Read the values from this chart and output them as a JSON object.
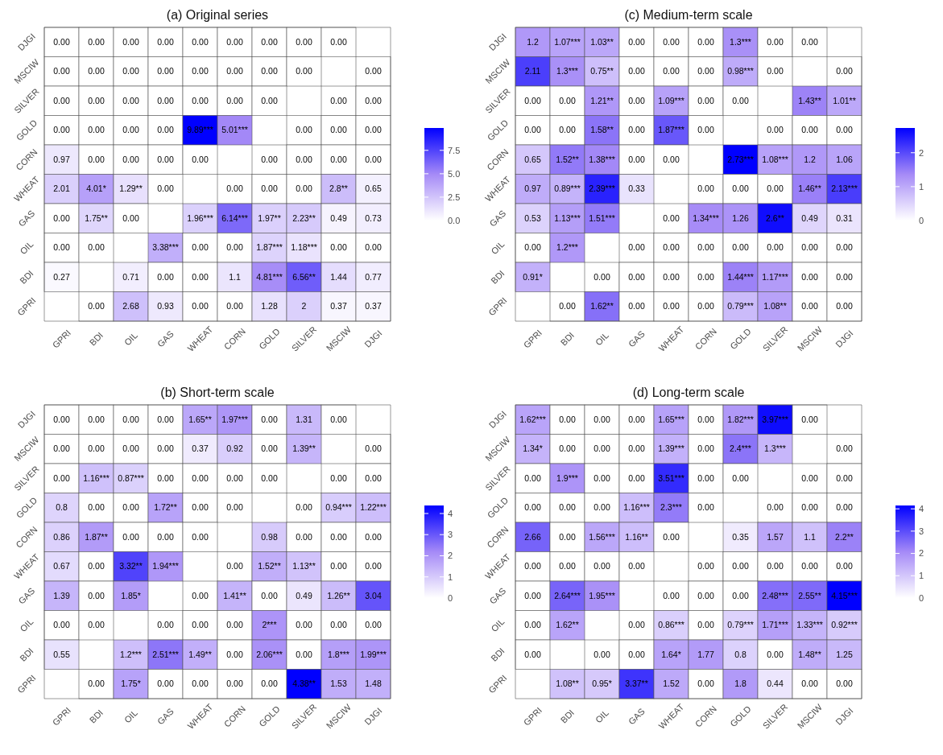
{
  "chart_data": [
    {
      "type": "heatmap",
      "title": "(a) Original series",
      "categories": [
        "GPRI",
        "BDI",
        "OIL",
        "GAS",
        "WHEAT",
        "CORN",
        "GOLD",
        "SILVER",
        "MSCIW",
        "DJGI"
      ],
      "y_categories": [
        "DJGI",
        "MSCIW",
        "SILVER",
        "GOLD",
        "CORN",
        "WHEAT",
        "GAS",
        "OIL",
        "BDI",
        "GPRI"
      ],
      "cells": [
        [
          0,
          0,
          0,
          0,
          0,
          0,
          0,
          0,
          0,
          null
        ],
        [
          0,
          0,
          0,
          0,
          0,
          0,
          0,
          0,
          null,
          0
        ],
        [
          0,
          0,
          0,
          0,
          0,
          0,
          0,
          null,
          0,
          0
        ],
        [
          0,
          0,
          0,
          0,
          9.89,
          5.01,
          null,
          0,
          0,
          0
        ],
        [
          0.97,
          0,
          0,
          0,
          0,
          null,
          0,
          0,
          0,
          0
        ],
        [
          2.01,
          4.01,
          1.29,
          0,
          null,
          0,
          0,
          0,
          2.8,
          0.65
        ],
        [
          0,
          1.75,
          0,
          null,
          1.96,
          6.14,
          1.97,
          2.23,
          0.49,
          0.73
        ],
        [
          0,
          0,
          null,
          3.38,
          0,
          0,
          1.87,
          1.18,
          0,
          0
        ],
        [
          0.27,
          null,
          0.71,
          0,
          0,
          1.1,
          4.81,
          6.56,
          1.44,
          0.77
        ],
        [
          null,
          0,
          2.68,
          0.93,
          0,
          0,
          1.28,
          2,
          0.37,
          0.37
        ]
      ],
      "cell_labels": [
        [
          "0.00",
          "0.00",
          "0.00",
          "0.00",
          "0.00",
          "0.00",
          "0.00",
          "0.00",
          "0.00",
          null
        ],
        [
          "0.00",
          "0.00",
          "0.00",
          "0.00",
          "0.00",
          "0.00",
          "0.00",
          "0.00",
          null,
          "0.00"
        ],
        [
          "0.00",
          "0.00",
          "0.00",
          "0.00",
          "0.00",
          "0.00",
          "0.00",
          null,
          "0.00",
          "0.00"
        ],
        [
          "0.00",
          "0.00",
          "0.00",
          "0.00",
          "9.89***",
          "5.01***",
          null,
          "0.00",
          "0.00",
          "0.00"
        ],
        [
          "0.97",
          "0.00",
          "0.00",
          "0.00",
          "0.00",
          null,
          "0.00",
          "0.00",
          "0.00",
          "0.00"
        ],
        [
          "2.01",
          "4.01*",
          "1.29**",
          "0.00",
          null,
          "0.00",
          "0.00",
          "0.00",
          "2.8**",
          "0.65"
        ],
        [
          "0.00",
          "1.75**",
          "0.00",
          null,
          "1.96***",
          "6.14***",
          "1.97**",
          "2.23**",
          "0.49",
          "0.73"
        ],
        [
          "0.00",
          "0.00",
          null,
          "3.38***",
          "0.00",
          "0.00",
          "1.87***",
          "1.18***",
          "0.00",
          "0.00"
        ],
        [
          "0.27",
          null,
          "0.71",
          "0.00",
          "0.00",
          "1.1",
          "4.81***",
          "6.56**",
          "1.44",
          "0.77"
        ],
        [
          null,
          "0.00",
          "2.68",
          "0.93",
          "0.00",
          "0.00",
          "1.28",
          "2",
          "0.37",
          "0.37"
        ]
      ],
      "colors": [
        "#ffffff",
        "#a58af7",
        "#0000ff"
      ],
      "clim": [
        0,
        9.89
      ],
      "cticks": [
        {
          "value": 0,
          "label": "0.0"
        },
        {
          "value": 2.5,
          "label": "2.5"
        },
        {
          "value": 5,
          "label": "5.0"
        },
        {
          "value": 7.5,
          "label": "7.5"
        }
      ]
    },
    {
      "type": "heatmap",
      "title": "(c) Medium-term scale",
      "categories": [
        "GPRI",
        "BDI",
        "OIL",
        "GAS",
        "WHEAT",
        "CORN",
        "GOLD",
        "SILVER",
        "MSCIW",
        "DJGI"
      ],
      "y_categories": [
        "DJGI",
        "MSCIW",
        "SILVER",
        "GOLD",
        "CORN",
        "WHEAT",
        "GAS",
        "OIL",
        "BDI",
        "GPRI"
      ],
      "cells": [
        [
          1.2,
          1.07,
          1.03,
          0,
          0,
          0,
          1.3,
          0,
          0,
          null
        ],
        [
          2.11,
          1.3,
          0.75,
          0,
          0,
          0,
          0.98,
          0,
          null,
          0
        ],
        [
          0,
          0,
          1.21,
          0,
          1.09,
          0,
          0,
          null,
          1.43,
          1.01
        ],
        [
          0,
          0,
          1.58,
          0,
          1.87,
          0,
          null,
          0,
          0,
          0
        ],
        [
          0.65,
          1.52,
          1.38,
          0,
          0,
          null,
          2.73,
          1.08,
          1.2,
          1.06
        ],
        [
          0.97,
          0.89,
          2.39,
          0.33,
          null,
          0,
          0,
          0,
          1.46,
          2.13
        ],
        [
          0.53,
          1.13,
          1.51,
          null,
          0,
          1.34,
          1.26,
          2.6,
          0.49,
          0.31
        ],
        [
          0,
          1.2,
          null,
          0,
          0,
          0,
          0,
          0,
          0,
          0
        ],
        [
          0.91,
          null,
          0,
          0,
          0,
          0,
          1.44,
          1.17,
          0,
          0
        ],
        [
          null,
          0,
          1.62,
          0,
          0,
          0,
          0.79,
          1.08,
          0,
          0
        ]
      ],
      "cell_labels": [
        [
          "1.2",
          "1.07***",
          "1.03**",
          "0.00",
          "0.00",
          "0.00",
          "1.3***",
          "0.00",
          "0.00",
          null
        ],
        [
          "2.11",
          "1.3***",
          "0.75**",
          "0.00",
          "0.00",
          "0.00",
          "0.98***",
          "0.00",
          null,
          "0.00"
        ],
        [
          "0.00",
          "0.00",
          "1.21**",
          "0.00",
          "1.09***",
          "0.00",
          "0.00",
          null,
          "1.43**",
          "1.01**"
        ],
        [
          "0.00",
          "0.00",
          "1.58**",
          "0.00",
          "1.87***",
          "0.00",
          null,
          "0.00",
          "0.00",
          "0.00"
        ],
        [
          "0.65",
          "1.52**",
          "1.38***",
          "0.00",
          "0.00",
          null,
          "2.73***",
          "1.08***",
          "1.2",
          "1.06"
        ],
        [
          "0.97",
          "0.89***",
          "2.39***",
          "0.33",
          null,
          "0.00",
          "0.00",
          "0.00",
          "1.46**",
          "2.13***"
        ],
        [
          "0.53",
          "1.13***",
          "1.51***",
          null,
          "0.00",
          "1.34***",
          "1.26",
          "2.6**",
          "0.49",
          "0.31"
        ],
        [
          "0.00",
          "1.2***",
          null,
          "0.00",
          "0.00",
          "0.00",
          "0.00",
          "0.00",
          "0.00",
          "0.00"
        ],
        [
          "0.91*",
          null,
          "0.00",
          "0.00",
          "0.00",
          "0.00",
          "1.44***",
          "1.17***",
          "0.00",
          "0.00"
        ],
        [
          null,
          "0.00",
          "1.62**",
          "0.00",
          "0.00",
          "0.00",
          "0.79***",
          "1.08**",
          "0.00",
          "0.00"
        ]
      ],
      "colors": [
        "#ffffff",
        "#a58af7",
        "#0000ff"
      ],
      "clim": [
        0,
        2.73
      ],
      "cticks": [
        0,
        1,
        2
      ]
    },
    {
      "type": "heatmap",
      "title": "(b) Short-term scale",
      "categories": [
        "GPRI",
        "BDI",
        "OIL",
        "GAS",
        "WHEAT",
        "CORN",
        "GOLD",
        "SILVER",
        "MSCIW",
        "DJGI"
      ],
      "y_categories": [
        "DJGI",
        "MSCIW",
        "SILVER",
        "GOLD",
        "CORN",
        "WHEAT",
        "GAS",
        "OIL",
        "BDI",
        "GPRI"
      ],
      "cells": [
        [
          0,
          0,
          0,
          0,
          1.65,
          1.97,
          0,
          1.31,
          0,
          null
        ],
        [
          0,
          0,
          0,
          0,
          0.37,
          0.92,
          0,
          1.39,
          null,
          0
        ],
        [
          0,
          1.16,
          0.87,
          0,
          0,
          0,
          0,
          null,
          0,
          0
        ],
        [
          0.8,
          0,
          0,
          1.72,
          0,
          0,
          null,
          0,
          0.94,
          1.22
        ],
        [
          0.86,
          1.87,
          0,
          0,
          0,
          null,
          0.98,
          0,
          0,
          0
        ],
        [
          0.67,
          0,
          3.32,
          1.94,
          null,
          0,
          1.52,
          1.13,
          0,
          0
        ],
        [
          1.39,
          0,
          1.85,
          null,
          0,
          1.41,
          0,
          0.49,
          1.26,
          3.04
        ],
        [
          0,
          0,
          null,
          0,
          0,
          0,
          2,
          0,
          0,
          0
        ],
        [
          0.55,
          null,
          1.2,
          2.51,
          1.49,
          0,
          2.06,
          0,
          1.8,
          1.99
        ],
        [
          null,
          0,
          1.75,
          0,
          0,
          0,
          0,
          4.38,
          1.53,
          1.48
        ]
      ],
      "cell_labels": [
        [
          "0.00",
          "0.00",
          "0.00",
          "0.00",
          "1.65**",
          "1.97***",
          "0.00",
          "1.31",
          "0.00",
          null
        ],
        [
          "0.00",
          "0.00",
          "0.00",
          "0.00",
          "0.37",
          "0.92",
          "0.00",
          "1.39**",
          null,
          "0.00"
        ],
        [
          "0.00",
          "1.16***",
          "0.87***",
          "0.00",
          "0.00",
          "0.00",
          "0.00",
          null,
          "0.00",
          "0.00"
        ],
        [
          "0.8",
          "0.00",
          "0.00",
          "1.72**",
          "0.00",
          "0.00",
          null,
          "0.00",
          "0.94***",
          "1.22***"
        ],
        [
          "0.86",
          "1.87**",
          "0.00",
          "0.00",
          "0.00",
          null,
          "0.98",
          "0.00",
          "0.00",
          "0.00"
        ],
        [
          "0.67",
          "0.00",
          "3.32**",
          "1.94***",
          null,
          "0.00",
          "1.52**",
          "1.13**",
          "0.00",
          "0.00"
        ],
        [
          "1.39",
          "0.00",
          "1.85*",
          null,
          "0.00",
          "1.41**",
          "0.00",
          "0.49",
          "1.26**",
          "3.04"
        ],
        [
          "0.00",
          "0.00",
          null,
          "0.00",
          "0.00",
          "0.00",
          "2***",
          "0.00",
          "0.00",
          "0.00"
        ],
        [
          "0.55",
          null,
          "1.2***",
          "2.51***",
          "1.49**",
          "0.00",
          "2.06***",
          "0.00",
          "1.8***",
          "1.99***"
        ],
        [
          null,
          "0.00",
          "1.75*",
          "0.00",
          "0.00",
          "0.00",
          "0.00",
          "4.38**",
          "1.53",
          "1.48"
        ]
      ],
      "colors": [
        "#ffffff",
        "#a58af7",
        "#0000ff"
      ],
      "clim": [
        0,
        4.38
      ],
      "cticks": [
        0,
        1,
        2,
        3,
        4
      ]
    },
    {
      "type": "heatmap",
      "title": "(d) Long-term scale",
      "categories": [
        "GPRI",
        "BDI",
        "OIL",
        "GAS",
        "WHEAT",
        "CORN",
        "GOLD",
        "SILVER",
        "MSCIW",
        "DJGI"
      ],
      "y_categories": [
        "DJGI",
        "MSCIW",
        "SILVER",
        "GOLD",
        "CORN",
        "WHEAT",
        "GAS",
        "OIL",
        "BDI",
        "GPRI"
      ],
      "cells": [
        [
          1.62,
          0,
          0,
          0,
          1.65,
          0,
          1.82,
          3.97,
          0,
          null
        ],
        [
          1.34,
          0,
          0,
          0,
          1.39,
          0,
          2.4,
          1.3,
          null,
          0
        ],
        [
          0,
          1.9,
          0,
          0,
          3.51,
          0,
          0,
          null,
          0,
          0
        ],
        [
          0,
          0,
          0,
          1.16,
          2.3,
          0,
          null,
          0,
          0,
          0
        ],
        [
          2.66,
          0,
          1.56,
          1.16,
          0,
          null,
          0.35,
          1.57,
          1.1,
          2.2
        ],
        [
          0,
          0,
          0,
          0,
          null,
          0,
          0,
          0,
          0,
          0
        ],
        [
          0,
          2.64,
          1.95,
          null,
          0,
          0,
          0,
          2.48,
          2.55,
          4.15
        ],
        [
          0,
          1.62,
          null,
          0,
          0.86,
          0,
          0.79,
          1.71,
          1.33,
          0.92
        ],
        [
          0,
          null,
          0,
          0,
          1.64,
          1.77,
          0.8,
          0,
          1.48,
          1.25
        ],
        [
          null,
          1.08,
          0.95,
          3.37,
          1.52,
          0,
          1.8,
          0.44,
          0,
          0
        ]
      ],
      "cell_labels": [
        [
          "1.62***",
          "0.00",
          "0.00",
          "0.00",
          "1.65***",
          "0.00",
          "1.82***",
          "3.97***",
          "0.00",
          null
        ],
        [
          "1.34*",
          "0.00",
          "0.00",
          "0.00",
          "1.39***",
          "0.00",
          "2.4***",
          "1.3***",
          null,
          "0.00"
        ],
        [
          "0.00",
          "1.9***",
          "0.00",
          "0.00",
          "3.51***",
          "0.00",
          "0.00",
          null,
          "0.00",
          "0.00"
        ],
        [
          "0.00",
          "0.00",
          "0.00",
          "1.16***",
          "2.3***",
          "0.00",
          null,
          "0.00",
          "0.00",
          "0.00"
        ],
        [
          "2.66",
          "0.00",
          "1.56***",
          "1.16**",
          "0.00",
          null,
          "0.35",
          "1.57",
          "1.1",
          "2.2**"
        ],
        [
          "0.00",
          "0.00",
          "0.00",
          "0.00",
          null,
          "0.00",
          "0.00",
          "0.00",
          "0.00",
          "0.00"
        ],
        [
          "0.00",
          "2.64***",
          "1.95***",
          null,
          "0.00",
          "0.00",
          "0.00",
          "2.48***",
          "2.55**",
          "4.15***"
        ],
        [
          "0.00",
          "1.62**",
          null,
          "0.00",
          "0.86***",
          "0.00",
          "0.79***",
          "1.71***",
          "1.33***",
          "0.92***"
        ],
        [
          "0.00",
          null,
          "0.00",
          "0.00",
          "1.64*",
          "1.77",
          "0.8",
          "0.00",
          "1.48**",
          "1.25"
        ],
        [
          null,
          "1.08**",
          "0.95*",
          "3.37**",
          "1.52",
          "0.00",
          "1.8",
          "0.44",
          "0.00",
          "0.00"
        ]
      ],
      "colors": [
        "#ffffff",
        "#a58af7",
        "#0000ff"
      ],
      "clim": [
        0,
        4.15
      ],
      "cticks": [
        0,
        1,
        2,
        3,
        4
      ]
    }
  ]
}
